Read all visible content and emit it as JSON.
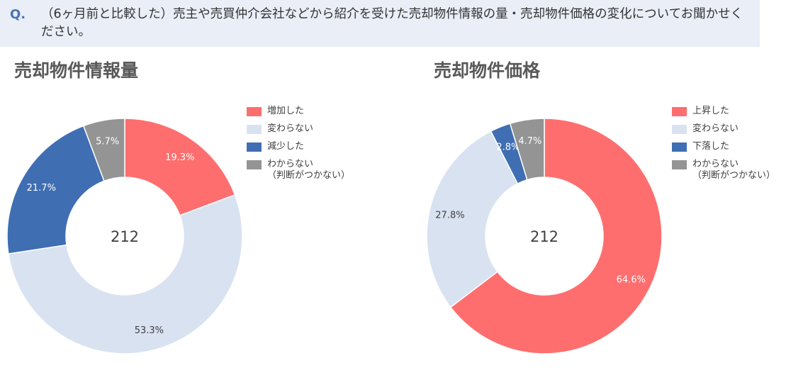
{
  "question": {
    "mark": "Q.",
    "text": "（6ヶ月前と比較した）売主や売買仲介会社などから紹介を受けた売却物件情報の量・売却物件価格の変化についてお聞かせください。"
  },
  "colors": {
    "increase": "#ff6e6e",
    "unchanged": "#d9e2f1",
    "decrease": "#3f6eb3",
    "unknown": "#949494"
  },
  "chart_data": [
    {
      "type": "pie",
      "variant": "donut",
      "title": "売却物件情報量",
      "center_label": "212",
      "categories": [
        "増加した",
        "変わらない",
        "減少した",
        "わからない（判断がつかない）"
      ],
      "legend": [
        {
          "label": "増加した"
        },
        {
          "label": "変わらない"
        },
        {
          "label": "減少した"
        },
        {
          "label": "わからない",
          "sublabel": "（判断がつかない）"
        }
      ],
      "values": [
        19.3,
        53.3,
        21.7,
        5.7
      ],
      "value_labels": [
        "19.3%",
        "53.3%",
        "21.7%",
        "5.7%"
      ],
      "colors": [
        "#ff6e6e",
        "#d9e2f1",
        "#3f6eb3",
        "#949494"
      ]
    },
    {
      "type": "pie",
      "variant": "donut",
      "title": "売却物件価格",
      "center_label": "212",
      "categories": [
        "上昇した",
        "変わらない",
        "下落した",
        "わからない（判断がつかない）"
      ],
      "legend": [
        {
          "label": "上昇した"
        },
        {
          "label": "変わらない"
        },
        {
          "label": "下落した"
        },
        {
          "label": "わからない",
          "sublabel": "（判断がつかない）"
        }
      ],
      "values": [
        64.6,
        27.8,
        2.8,
        4.7
      ],
      "value_labels": [
        "64.6%",
        "27.8%",
        "2.8%",
        "4.7%"
      ],
      "colors": [
        "#ff6e6e",
        "#d9e2f1",
        "#3f6eb3",
        "#949494"
      ]
    }
  ]
}
